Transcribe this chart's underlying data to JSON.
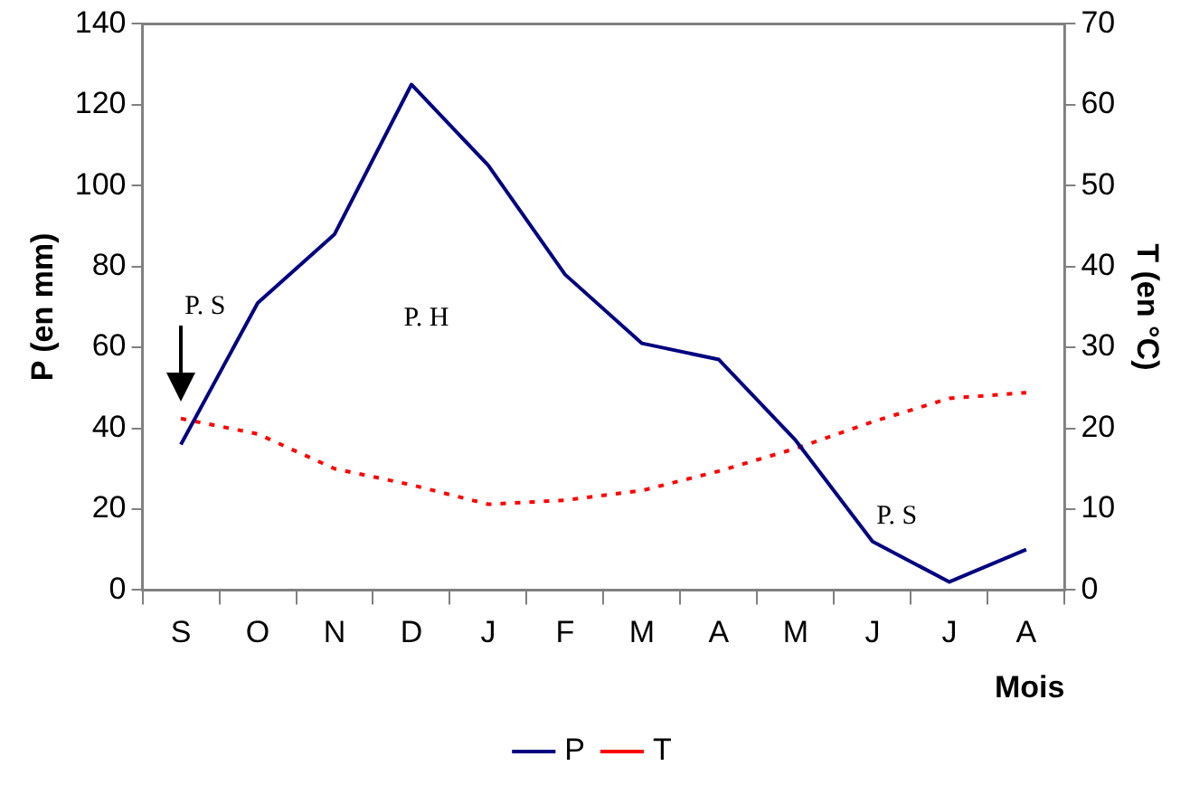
{
  "chart_data": {
    "type": "line",
    "xlabel": "Mois",
    "ylabel": "P (en mm)",
    "y2label": "T (en °C)",
    "categories": [
      "S",
      "O",
      "N",
      "D",
      "J",
      "F",
      "M",
      "A",
      "M",
      "J",
      "J",
      "A"
    ],
    "series": [
      {
        "name": "P",
        "color": "#000080",
        "values": [
          36,
          71,
          88,
          125,
          105,
          78,
          61,
          57,
          37,
          12,
          2,
          10
        ],
        "line_style": "solid"
      },
      {
        "name": "T",
        "color": "#ff0000",
        "axis": "y2",
        "values": [
          21.2,
          19.3,
          15,
          13,
          10.6,
          11.1,
          12.3,
          14.7,
          17.5,
          20.8,
          23.7,
          24.4
        ],
        "line_style": "dotted"
      }
    ],
    "ylim": [
      0,
      140
    ],
    "yticks": [
      0,
      20,
      40,
      60,
      80,
      100,
      120,
      140
    ],
    "y2lim": [
      0,
      70
    ],
    "y2ticks": [
      0,
      10,
      20,
      30,
      40,
      50,
      60,
      70
    ],
    "annotations": [
      "P. S",
      "P. H",
      "P. S"
    ],
    "grid": false,
    "legend": "bottom",
    "marker": "none"
  }
}
